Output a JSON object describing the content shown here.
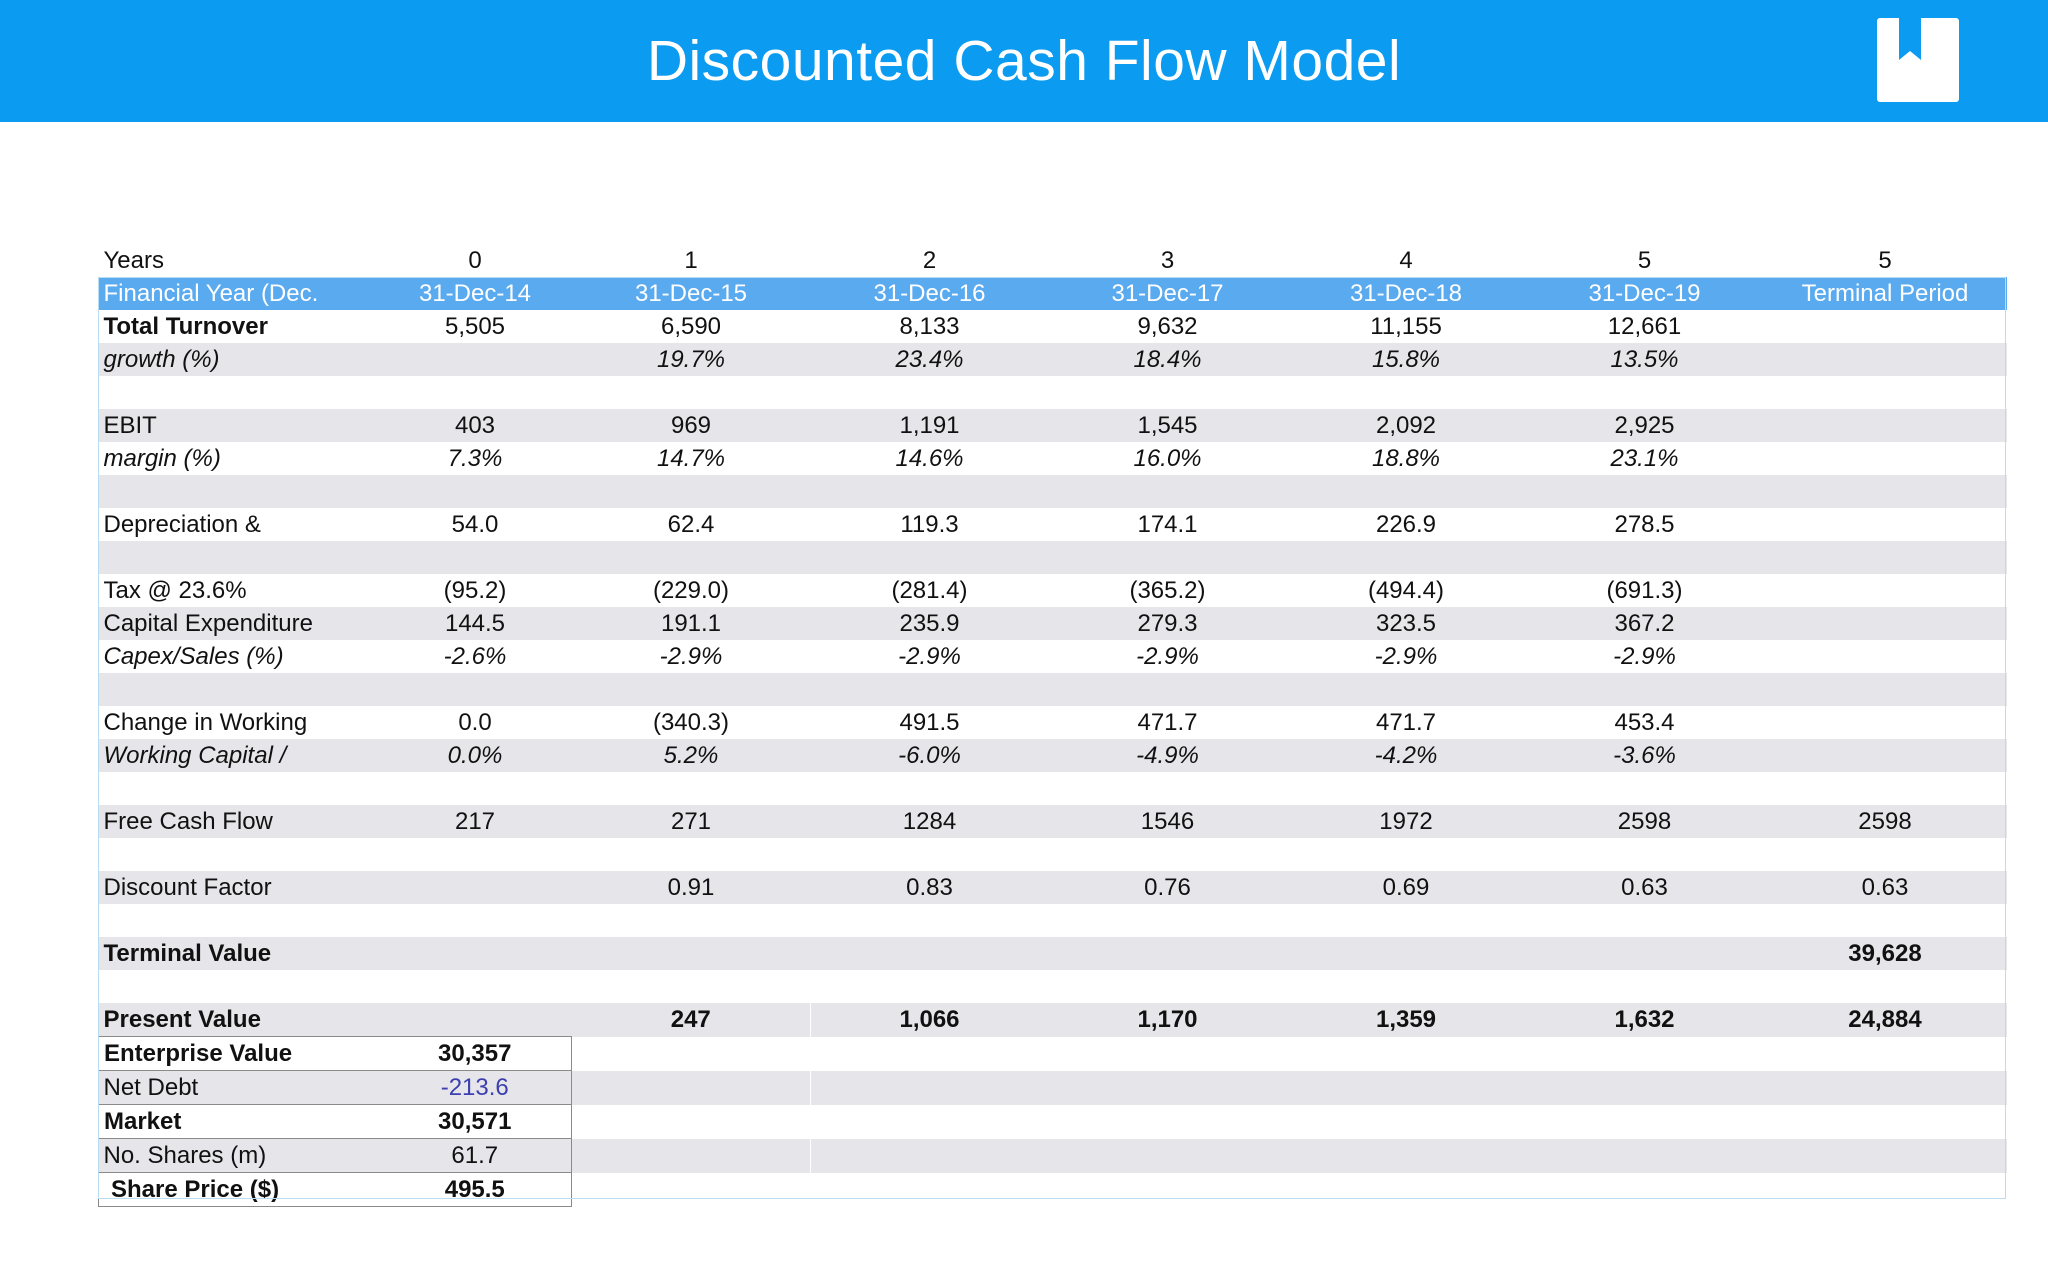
{
  "header": {
    "title": "Discounted Cash Flow Model",
    "logo_icon": "bookmark-book-icon",
    "accent_color": "#0b9bf0"
  },
  "table": {
    "years_label": "Years",
    "years": [
      "0",
      "1",
      "2",
      "3",
      "4",
      "5",
      "5"
    ],
    "fy_label": "Financial Year (Dec.",
    "fy_dates": [
      "31-Dec-14",
      "31-Dec-15",
      "31-Dec-16",
      "31-Dec-17",
      "31-Dec-18",
      "31-Dec-19",
      "Terminal Period"
    ],
    "rows": {
      "total_turnover": {
        "label": "Total Turnover",
        "values": [
          "5,505",
          "6,590",
          "8,133",
          "9,632",
          "11,155",
          "12,661",
          ""
        ]
      },
      "growth": {
        "label": "growth (%)",
        "values": [
          "",
          "19.7%",
          "23.4%",
          "18.4%",
          "15.8%",
          "13.5%",
          ""
        ]
      },
      "ebit": {
        "label": "EBIT",
        "values": [
          "403",
          "969",
          "1,191",
          "1,545",
          "2,092",
          "2,925",
          ""
        ]
      },
      "margin": {
        "label": "margin (%)",
        "values": [
          "7.3%",
          "14.7%",
          "14.6%",
          "16.0%",
          "18.8%",
          "23.1%",
          ""
        ]
      },
      "depreciation": {
        "label": "Depreciation &",
        "values": [
          "54.0",
          "62.4",
          "119.3",
          "174.1",
          "226.9",
          "278.5",
          ""
        ]
      },
      "tax": {
        "label": "Tax @ 23.6%",
        "values": [
          "(95.2)",
          "(229.0)",
          "(281.4)",
          "(365.2)",
          "(494.4)",
          "(691.3)",
          ""
        ]
      },
      "capex": {
        "label": "Capital Expenditure",
        "values": [
          "144.5",
          "191.1",
          "235.9",
          "279.3",
          "323.5",
          "367.2",
          ""
        ]
      },
      "capex_sales": {
        "label": "Capex/Sales (%)",
        "values": [
          "-2.6%",
          "-2.9%",
          "-2.9%",
          "-2.9%",
          "-2.9%",
          "-2.9%",
          ""
        ]
      },
      "change_wc": {
        "label": "Change in Working",
        "values": [
          "0.0",
          "(340.3)",
          "491.5",
          "471.7",
          "471.7",
          "453.4",
          ""
        ]
      },
      "wc_ratio": {
        "label": "Working Capital /",
        "values": [
          "0.0%",
          "5.2%",
          "-6.0%",
          "-4.9%",
          "-4.2%",
          "-3.6%",
          ""
        ]
      },
      "fcf": {
        "label": "Free Cash Flow",
        "values": [
          "217",
          "271",
          "1284",
          "1546",
          "1972",
          "2598",
          "2598"
        ]
      },
      "discount_factor": {
        "label": "Discount Factor",
        "values": [
          "",
          "0.91",
          "0.83",
          "0.76",
          "0.69",
          "0.63",
          "0.63"
        ]
      },
      "terminal_value": {
        "label": "Terminal Value",
        "values": [
          "",
          "",
          "",
          "",
          "",
          "",
          "39,628"
        ]
      },
      "present_value": {
        "label": "Present Value",
        "values": [
          "",
          "247",
          "1,066",
          "1,170",
          "1,359",
          "1,632",
          "24,884"
        ]
      }
    },
    "summary": {
      "enterprise_value": {
        "label": "Enterprise Value",
        "value": "30,357"
      },
      "net_debt": {
        "label": "Net Debt",
        "value": "-213.6"
      },
      "market": {
        "label": "Market",
        "value": "30,571"
      },
      "shares": {
        "label": "No. Shares (m)",
        "value": "61.7"
      },
      "share_price": {
        "label": "Share Price ($)",
        "value": "495.5"
      }
    }
  }
}
